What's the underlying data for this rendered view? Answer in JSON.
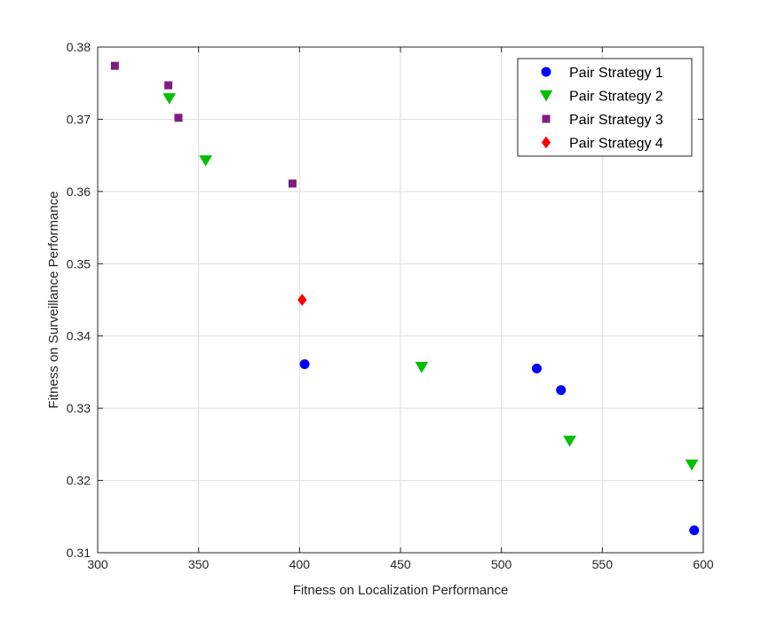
{
  "chart_data": {
    "type": "scatter",
    "xlabel": "Fitness on Localization Performance",
    "ylabel": "Fitness on Surveillance Performance",
    "xlim": [
      300,
      600
    ],
    "ylim": [
      0.31,
      0.38
    ],
    "xticks": [
      300,
      350,
      400,
      450,
      500,
      550,
      600
    ],
    "yticks": [
      0.31,
      0.32,
      0.33,
      0.34,
      0.35,
      0.36,
      0.37,
      0.38
    ],
    "xtick_labels": [
      "300",
      "350",
      "400",
      "450",
      "500",
      "550",
      "600"
    ],
    "ytick_labels": [
      "0.31",
      "0.32",
      "0.33",
      "0.34",
      "0.35",
      "0.36",
      "0.37",
      "0.38"
    ],
    "grid": true,
    "legend_position": "top-right",
    "series": [
      {
        "name": "Pair Strategy 1",
        "marker": "circle",
        "color": "#0000ff",
        "points": [
          [
            402.5,
            0.3361
          ],
          [
            517.5,
            0.3355
          ],
          [
            529.5,
            0.3325
          ],
          [
            595.5,
            0.3131
          ]
        ]
      },
      {
        "name": "Pair Strategy 2",
        "marker": "triangle-down",
        "color": "#00c000",
        "points": [
          [
            335.5,
            0.3729
          ],
          [
            353.5,
            0.3643
          ],
          [
            460.5,
            0.3357
          ],
          [
            533.8,
            0.3255
          ],
          [
            594.3,
            0.3222
          ]
        ]
      },
      {
        "name": "Pair Strategy 3",
        "marker": "square",
        "color": "#7e1e80",
        "points": [
          [
            308.5,
            0.3774
          ],
          [
            335.0,
            0.3747
          ],
          [
            340.0,
            0.3702
          ],
          [
            396.5,
            0.3611
          ]
        ]
      },
      {
        "name": "Pair Strategy 4",
        "marker": "diamond",
        "color": "#ff0000",
        "points": [
          [
            401.3,
            0.345
          ]
        ]
      }
    ]
  }
}
